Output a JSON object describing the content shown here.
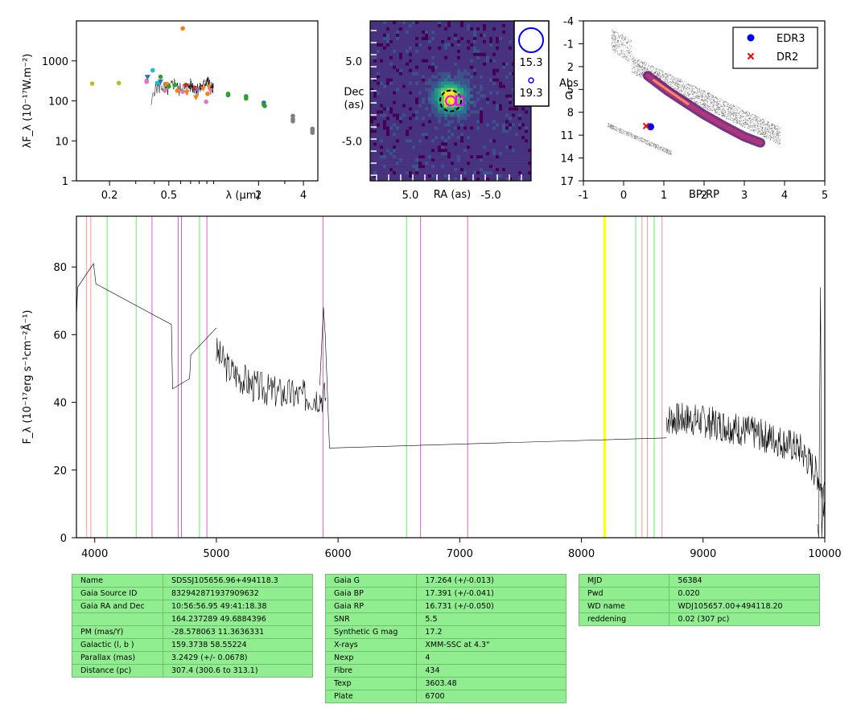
{
  "colors": {
    "table_bg": "#90ee90",
    "edr3": "#0000ff",
    "dr2": "#ff0000",
    "highlight": "#ffff00"
  },
  "chart_data": [
    {
      "type": "scatter",
      "name": "sed",
      "ylabel": "λF_λ (10⁻¹⁷W.m⁻²)",
      "xlabel": "λ (μm)",
      "xscale": "log",
      "yscale": "log",
      "xlim": [
        0.12,
        5.0
      ],
      "ylim": [
        1,
        10000
      ],
      "x_ticks": [
        {
          "v": 0.2,
          "t": "0.2"
        },
        {
          "v": 0.5,
          "t": "0.5"
        },
        {
          "v": 2,
          "t": "2"
        },
        {
          "v": 4,
          "t": "4"
        }
      ],
      "x_minor": [
        0.3,
        0.4,
        0.6,
        0.7,
        0.8,
        0.9,
        1.0,
        3.0
      ],
      "y_ticks": [
        {
          "v": 1,
          "t": "1"
        },
        {
          "v": 10,
          "t": "10"
        },
        {
          "v": 100,
          "t": "100"
        },
        {
          "v": 1000,
          "t": "1000"
        }
      ],
      "points": [
        {
          "x": 0.153,
          "y": 270,
          "c": "#bcbd22"
        },
        {
          "x": 0.231,
          "y": 280,
          "c": "#bcbd22"
        },
        {
          "x": 0.355,
          "y": 300,
          "c": "#e377c2"
        },
        {
          "x": 0.355,
          "y": 320,
          "c": "#e377c2"
        },
        {
          "x": 0.36,
          "y": 390,
          "c": "#1f77b4",
          "m": "tri"
        },
        {
          "x": 0.39,
          "y": 580,
          "c": "#17becf"
        },
        {
          "x": 0.42,
          "y": 280,
          "c": "#17becf"
        },
        {
          "x": 0.44,
          "y": 300,
          "c": "#1f77b4",
          "m": "tri"
        },
        {
          "x": 0.44,
          "y": 400,
          "c": "#2ca02c"
        },
        {
          "x": 0.47,
          "y": 180,
          "c": "#e377c2"
        },
        {
          "x": 0.48,
          "y": 260,
          "c": "#ff7f0e",
          "m": "tri"
        },
        {
          "x": 0.5,
          "y": 230,
          "c": "#2ca02c"
        },
        {
          "x": 0.55,
          "y": 250,
          "c": "#2ca02c"
        },
        {
          "x": 0.57,
          "y": 180,
          "c": "#ff7f0e"
        },
        {
          "x": 0.62,
          "y": 6500,
          "c": "#ff7f0e"
        },
        {
          "x": 0.62,
          "y": 170,
          "c": "#e377c2"
        },
        {
          "x": 0.65,
          "y": 250,
          "c": "#d62728"
        },
        {
          "x": 0.66,
          "y": 160,
          "c": "#ff7f0e",
          "m": "tri"
        },
        {
          "x": 0.75,
          "y": 210,
          "c": "#d62728"
        },
        {
          "x": 0.76,
          "y": 120,
          "c": "#ff7f0e",
          "m": "tri"
        },
        {
          "x": 0.78,
          "y": 190,
          "c": "#9467bd",
          "m": "tri"
        },
        {
          "x": 0.85,
          "y": 200,
          "c": "#ff7f0e",
          "m": "tri"
        },
        {
          "x": 0.89,
          "y": 95,
          "c": "#e377c2"
        },
        {
          "x": 0.91,
          "y": 150,
          "c": "#ff7f0e"
        },
        {
          "x": 0.93,
          "y": 220,
          "c": "#ff7f0e",
          "m": "tri"
        },
        {
          "x": 0.95,
          "y": 180,
          "c": "#e377c2",
          "m": "tri"
        },
        {
          "x": 1.25,
          "y": 150,
          "c": "#2ca02c"
        },
        {
          "x": 1.25,
          "y": 140,
          "c": "#2ca02c"
        },
        {
          "x": 1.65,
          "y": 130,
          "c": "#2ca02c"
        },
        {
          "x": 1.65,
          "y": 115,
          "c": "#2ca02c"
        },
        {
          "x": 2.17,
          "y": 90,
          "c": "#1f77b4"
        },
        {
          "x": 2.17,
          "y": 80,
          "c": "#2ca02c"
        },
        {
          "x": 2.2,
          "y": 75,
          "c": "#2ca02c"
        },
        {
          "x": 3.4,
          "y": 42,
          "c": "#7f7f7f"
        },
        {
          "x": 3.4,
          "y": 35,
          "c": "#7f7f7f"
        },
        {
          "x": 3.4,
          "y": 31,
          "c": "#7f7f7f"
        },
        {
          "x": 4.6,
          "y": 20,
          "c": "#7f7f7f"
        },
        {
          "x": 4.6,
          "y": 18,
          "c": "#7f7f7f"
        },
        {
          "x": 4.6,
          "y": 16,
          "c": "#7f7f7f"
        }
      ],
      "spectrum": [
        [
          0.38,
          60
        ],
        [
          0.4,
          210
        ],
        [
          0.42,
          230
        ],
        [
          0.45,
          240
        ],
        [
          0.48,
          180
        ],
        [
          0.52,
          240
        ],
        [
          0.55,
          300
        ],
        [
          0.58,
          190
        ],
        [
          0.62,
          230
        ],
        [
          0.65,
          180
        ],
        [
          0.7,
          260
        ],
        [
          0.75,
          220
        ],
        [
          0.8,
          200
        ],
        [
          0.85,
          240
        ],
        [
          0.9,
          350
        ],
        [
          0.95,
          230
        ],
        [
          1.0,
          200
        ]
      ]
    },
    {
      "type": "heatmap",
      "name": "image",
      "xlabel": "RA (as)",
      "ylabel_lines": [
        "Dec",
        "(as)"
      ],
      "extent": [
        10,
        -10,
        -10,
        10
      ],
      "x_ticks": [
        {
          "v": 5,
          "t": "5.0"
        },
        {
          "v": -5,
          "t": "-5.0"
        }
      ],
      "y_ticks": [
        {
          "v": 5,
          "t": "5.0"
        },
        {
          "v": -5,
          "t": "-5.0"
        }
      ],
      "source_center": [
        0,
        0
      ],
      "legend": [
        {
          "label": "15.3"
        },
        {
          "label": "19.3"
        }
      ]
    },
    {
      "type": "scatter",
      "name": "cmd",
      "xlabel": "BP-RP",
      "ylabel_lines": [
        "Abs",
        "G"
      ],
      "xlim": [
        -1,
        5
      ],
      "ylim": [
        17,
        -4
      ],
      "x_ticks": [
        {
          "v": -1,
          "t": "-1"
        },
        {
          "v": 0,
          "t": "0"
        },
        {
          "v": 1,
          "t": "1"
        },
        {
          "v": 2,
          "t": "2"
        },
        {
          "v": 3,
          "t": "3"
        },
        {
          "v": 4,
          "t": "4"
        },
        {
          "v": 5,
          "t": "5"
        }
      ],
      "y_ticks": [
        {
          "v": -4,
          "t": "-4"
        },
        {
          "v": -1,
          "t": "-1"
        },
        {
          "v": 2,
          "t": "2"
        },
        {
          "v": 5,
          "t": "5"
        },
        {
          "v": 8,
          "t": "8"
        },
        {
          "v": 11,
          "t": "11"
        },
        {
          "v": 14,
          "t": "14"
        },
        {
          "v": 17,
          "t": "17"
        }
      ],
      "series": [
        {
          "name": "EDR3",
          "x": 0.67,
          "y": 9.9,
          "marker": "circle",
          "color": "#0000ff"
        },
        {
          "name": "DR2",
          "x": 0.56,
          "y": 9.8,
          "marker": "x",
          "color": "#ff0000"
        }
      ]
    },
    {
      "type": "line",
      "name": "spectrum",
      "ylabel": "F_λ (10⁻¹⁷erg s⁻¹cm⁻²Å⁻¹)",
      "xlim": [
        3850,
        10000
      ],
      "ylim": [
        0,
        95
      ],
      "x_ticks": [
        4000,
        5000,
        6000,
        7000,
        8000,
        9000,
        10000
      ],
      "y_ticks": [
        0,
        20,
        40,
        60,
        80
      ],
      "vlines": [
        {
          "x": 3934,
          "c": "#ff9999"
        },
        {
          "x": 3968,
          "c": "#ff9999"
        },
        {
          "x": 4102,
          "c": "#66ee66"
        },
        {
          "x": 4341,
          "c": "#66ee66"
        },
        {
          "x": 4471,
          "c": "#cc66cc"
        },
        {
          "x": 4686,
          "c": "#cc66cc"
        },
        {
          "x": 4713,
          "c": "#cc66cc"
        },
        {
          "x": 4861,
          "c": "#66ee66"
        },
        {
          "x": 4922,
          "c": "#cc66cc"
        },
        {
          "x": 5876,
          "c": "#cc66cc"
        },
        {
          "x": 6563,
          "c": "#66ee66"
        },
        {
          "x": 6678,
          "c": "#cc66cc"
        },
        {
          "x": 7065,
          "c": "#cc66cc"
        },
        {
          "x": 8498,
          "c": "#ff9999"
        },
        {
          "x": 8542,
          "c": "#ff9999"
        },
        {
          "x": 8446,
          "c": "#66ee66"
        },
        {
          "x": 8598,
          "c": "#66ee66"
        },
        {
          "x": 8662,
          "c": "#ff9999"
        }
      ],
      "highlight_band": [
        8180,
        8200
      ],
      "segments": [
        {
          "type": "poly",
          "pts": [
            [
              3850,
              65
            ],
            [
              3860,
              74
            ],
            [
              3990,
              81
            ],
            [
              4010,
              75
            ],
            [
              4630,
              63
            ],
            [
              4640,
              44
            ],
            [
              4780,
              47
            ],
            [
              4790,
              54
            ],
            [
              5000,
              62
            ]
          ]
        },
        {
          "type": "noisy",
          "x0": 5000,
          "x1": 5900,
          "base": [
            [
              5000,
              55
            ],
            [
              5100,
              50
            ],
            [
              5300,
              45
            ],
            [
              5500,
              43
            ],
            [
              5700,
              42
            ],
            [
              5850,
              42
            ]
          ],
          "amp": 5,
          "step": 6,
          "seed": 3
        },
        {
          "type": "poly",
          "pts": [
            [
              5850,
              45
            ],
            [
              5880,
              68
            ],
            [
              5895,
              60
            ],
            [
              5930,
              26.5
            ],
            [
              8700,
              29.5
            ]
          ]
        },
        {
          "type": "noisy",
          "x0": 8700,
          "x1": 10000,
          "base": [
            [
              8700,
              35
            ],
            [
              8900,
              35
            ],
            [
              9200,
              33
            ],
            [
              9400,
              31
            ],
            [
              9600,
              29
            ],
            [
              9800,
              26
            ],
            [
              9950,
              18
            ],
            [
              10000,
              10
            ]
          ],
          "amp": 5,
          "step": 4,
          "seed": 7
        },
        {
          "type": "poly",
          "pts": [
            [
              9940,
              4
            ],
            [
              9950,
              0
            ],
            [
              9965,
              74
            ],
            [
              9975,
              0
            ],
            [
              9990,
              15
            ],
            [
              10000,
              17
            ]
          ]
        }
      ]
    }
  ],
  "tables": [
    {
      "rows": [
        [
          "Name",
          "SDSSJ105656.96+494118.3"
        ],
        [
          "Gaia Source ID",
          "832942871937909632"
        ],
        [
          "Gaia RA and Dec",
          "10:56:56.95    49:41:18.38"
        ],
        [
          "",
          "164.237289    49.6884396"
        ],
        [
          "PM (mas/Y)",
          "-28.578063    11.3636331"
        ],
        [
          "Galactic (l, b )",
          "159.3738    58.55224"
        ],
        [
          "Parallax (mas)",
          "3.2429 (+/- 0.0678)"
        ],
        [
          "Distance (pc)",
          "307.4 (300.6 to 313.1)"
        ]
      ]
    },
    {
      "rows": [
        [
          "Gaia G",
          "17.264 (+/-0.013)"
        ],
        [
          "Gaia BP",
          "17.391 (+/-0.041)"
        ],
        [
          "Gaia RP",
          "16.731 (+/-0.050)"
        ],
        [
          "SNR",
          "5.5"
        ],
        [
          "Synthetic G mag",
          "17.2"
        ],
        [
          "X-rays",
          "XMM-SSC at 4.3\""
        ],
        [
          "Nexp",
          "4"
        ],
        [
          "Fibre",
          "434"
        ],
        [
          "Texp",
          "3603.48"
        ],
        [
          "Plate",
          "6700"
        ]
      ]
    },
    {
      "rows": [
        [
          "MJD",
          "56384"
        ],
        [
          "Pwd",
          "0.020"
        ],
        [
          "WD name",
          "WDJ105657.00+494118.20"
        ],
        [
          "reddening",
          "0.02 (307 pc)"
        ]
      ]
    }
  ]
}
